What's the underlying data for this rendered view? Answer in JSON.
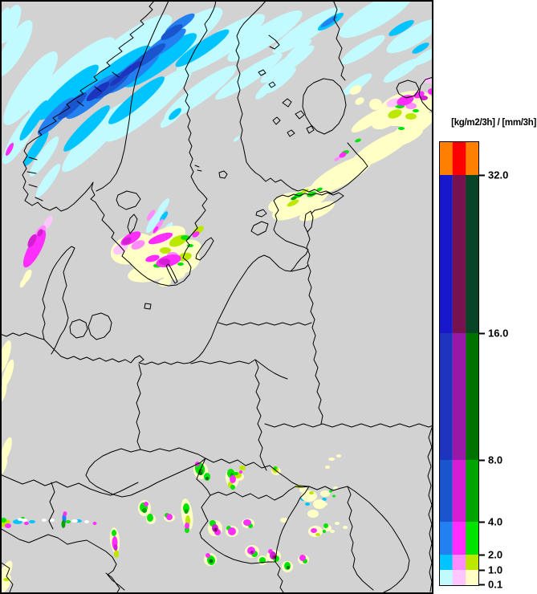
{
  "legend": {
    "title": "[kg/m2/3h] / [mm/3h]",
    "ticks": [
      {
        "label": "32.0"
      },
      {
        "label": "16.0"
      },
      {
        "label": "8.0"
      },
      {
        "label": "4.0"
      },
      {
        "label": "2.0"
      },
      {
        "label": "1.0"
      },
      {
        "label": "0.1"
      }
    ],
    "bands": [
      {
        "colors": [
          "cap_orange",
          "cap_red",
          "cap_orange"
        ]
      },
      {
        "colors": [
          "rain_16",
          "mix_16",
          "snow_16"
        ]
      },
      {
        "colors": [
          "rain_8",
          "mix_8",
          "snow_8"
        ]
      },
      {
        "colors": [
          "rain_4",
          "mix_4",
          "snow_4"
        ]
      },
      {
        "colors": [
          "rain_2",
          "mix_2",
          "snow_2"
        ]
      },
      {
        "colors": [
          "rain_1",
          "mix_1",
          "snow_1"
        ]
      },
      {
        "colors": [
          "rain_trace",
          "mix_trace",
          "snow_trace"
        ]
      }
    ]
  },
  "palette": {
    "map_bg": "#D2D2D2",
    "line": "#000000",
    "legend_bg": "#FFFFFF",
    "cap_orange": "#FF7F00",
    "cap_red": "#FF0000",
    "rain_trace": "#C2FBFF",
    "rain_1": "#00C4FF",
    "rain_2": "#2380F0",
    "rain_4": "#1B55CE",
    "rain_8": "#1C34BE",
    "rain_16": "#1717CC",
    "mix_trace": "#FFC6FF",
    "mix_1": "#FF8CFF",
    "mix_2": "#FF2EFF",
    "mix_4": "#D31ED3",
    "mix_8": "#9A18A8",
    "mix_16": "#76124E",
    "snow_trace": "#FFFFC6",
    "snow_1": "#BCE800",
    "snow_2": "#00E400",
    "snow_4": "#00A400",
    "snow_8": "#007200",
    "snow_16": "#084526"
  }
}
